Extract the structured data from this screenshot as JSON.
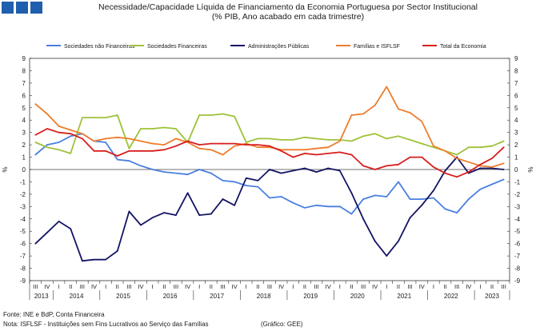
{
  "header": {
    "title": "Necessidade/Capacidade Líquida de Financiamento da Economia Portuguesa por Sector Institucional",
    "subtitle": "(% PIB, Ano acabado em cada trimestre)",
    "logo_color": "#1f5fad"
  },
  "footer": {
    "source": "Fonte: INE e BdP, Conta Financeira",
    "note": "Nota: ISFLSF - Instituições sem Fins Lucrativos ao Serviço das Famílias",
    "credit": "(Gráfico: GEE)"
  },
  "chart_data": {
    "type": "line",
    "ylabel": "%",
    "ylim": [
      -9,
      9
    ],
    "yticks": [
      9,
      8,
      7,
      6,
      5,
      4,
      3,
      2,
      1,
      0,
      -1,
      -2,
      -3,
      -4,
      -5,
      -6,
      -7,
      -8,
      -9
    ],
    "x": [
      "III 2013",
      "IV 2013",
      "I 2014",
      "II 2014",
      "III 2014",
      "IV 2014",
      "I 2015",
      "II 2015",
      "III 2015",
      "IV 2015",
      "I 2016",
      "II 2016",
      "III 2016",
      "IV 2016",
      "I 2017",
      "II 2017",
      "III 2017",
      "IV 2017",
      "I 2018",
      "II 2018",
      "III 2018",
      "IV 2018",
      "I 2019",
      "II 2019",
      "III 2019",
      "IV 2019",
      "I 2020",
      "II 2020",
      "III 2020",
      "IV 2020",
      "I 2021",
      "II 2021",
      "III 2021",
      "IV 2021",
      "I 2022",
      "II 2022",
      "III 2022",
      "IV 2022",
      "I 2023",
      "II 2023",
      "III 2023"
    ],
    "quarter_labels": [
      "III",
      "IV",
      "I",
      "II",
      "III",
      "IV",
      "I",
      "II",
      "III",
      "IV",
      "I",
      "II",
      "III",
      "IV",
      "I",
      "II",
      "III",
      "IV",
      "I",
      "II",
      "III",
      "IV",
      "I",
      "II",
      "III",
      "IV",
      "I",
      "II",
      "III",
      "IV",
      "I",
      "II",
      "III",
      "IV",
      "I",
      "II",
      "III",
      "IV",
      "I",
      "II",
      "III"
    ],
    "years": [
      {
        "label": "2013",
        "from": 0,
        "to": 1
      },
      {
        "label": "2014",
        "from": 2,
        "to": 5
      },
      {
        "label": "2015",
        "from": 6,
        "to": 9
      },
      {
        "label": "2016",
        "from": 10,
        "to": 13
      },
      {
        "label": "2017",
        "from": 14,
        "to": 17
      },
      {
        "label": "2018",
        "from": 18,
        "to": 21
      },
      {
        "label": "2019",
        "from": 22,
        "to": 25
      },
      {
        "label": "2020",
        "from": 26,
        "to": 29
      },
      {
        "label": "2021",
        "from": 30,
        "to": 33
      },
      {
        "label": "2022",
        "from": 34,
        "to": 37
      },
      {
        "label": "2023",
        "from": 38,
        "to": 40
      }
    ],
    "legend_position": "top",
    "series": [
      {
        "name": "Sociedades não Financeiras",
        "color": "#4a7fe0",
        "values": [
          1.2,
          2.0,
          2.2,
          2.7,
          2.9,
          2.3,
          2.2,
          0.8,
          0.7,
          0.3,
          0.0,
          -0.2,
          -0.3,
          -0.4,
          0.0,
          -0.3,
          -0.9,
          -1.0,
          -1.3,
          -1.4,
          -2.3,
          -2.2,
          -2.7,
          -3.1,
          -2.9,
          -3.0,
          -3.0,
          -3.6,
          -2.4,
          -2.1,
          -2.2,
          -1.0,
          -2.4,
          -2.4,
          -2.3,
          -3.2,
          -3.5,
          -2.4,
          -1.6,
          -1.2,
          -0.8
        ]
      },
      {
        "name": "Sociedades Financeiras",
        "color": "#9dc23a",
        "values": [
          2.2,
          1.8,
          1.6,
          1.3,
          4.2,
          4.2,
          4.2,
          4.4,
          1.7,
          3.3,
          3.3,
          3.4,
          3.3,
          2.2,
          4.4,
          4.4,
          4.5,
          4.3,
          2.2,
          2.5,
          2.5,
          2.4,
          2.4,
          2.6,
          2.5,
          2.4,
          2.4,
          2.3,
          2.7,
          2.9,
          2.5,
          2.7,
          2.4,
          2.1,
          1.8,
          1.5,
          1.2,
          1.8,
          1.8,
          1.9,
          2.3
        ]
      },
      {
        "name": "Administrações Públicas",
        "color": "#141464",
        "values": [
          -6.0,
          -5.1,
          -4.2,
          -4.8,
          -7.4,
          -7.3,
          -7.3,
          -6.6,
          -3.4,
          -4.5,
          -3.9,
          -3.5,
          -3.7,
          -1.9,
          -3.7,
          -3.6,
          -2.4,
          -2.9,
          -0.7,
          -0.9,
          0.0,
          -0.3,
          -0.1,
          0.1,
          -0.2,
          0.1,
          -0.1,
          -1.9,
          -4.0,
          -5.8,
          -7.0,
          -5.8,
          -3.9,
          -2.9,
          -1.7,
          -0.1,
          1.0,
          -0.3,
          0.1,
          0.1,
          0.0
        ]
      },
      {
        "name": "Famílias e ISFLSF",
        "color": "#ee7d2b",
        "values": [
          5.3,
          4.5,
          3.5,
          3.2,
          2.9,
          2.3,
          2.5,
          2.6,
          2.5,
          2.3,
          2.1,
          2.0,
          2.5,
          2.2,
          1.7,
          1.6,
          1.2,
          1.9,
          2.1,
          1.8,
          1.8,
          1.6,
          1.6,
          1.6,
          1.7,
          1.8,
          2.3,
          4.4,
          4.5,
          5.2,
          6.7,
          4.9,
          4.6,
          3.9,
          1.9,
          1.5,
          0.9,
          0.6,
          0.3,
          0.2,
          0.5
        ]
      },
      {
        "name": "Total da Economia",
        "color": "#d81e1e",
        "values": [
          2.8,
          3.3,
          3.0,
          2.9,
          2.5,
          1.5,
          1.5,
          1.1,
          1.5,
          1.5,
          1.5,
          1.6,
          1.9,
          2.3,
          2.0,
          2.1,
          2.1,
          2.1,
          2.0,
          2.0,
          1.9,
          1.5,
          1.0,
          1.3,
          1.2,
          1.3,
          1.4,
          1.2,
          0.3,
          0.0,
          0.3,
          0.4,
          1.0,
          1.0,
          0.2,
          -0.3,
          -0.6,
          -0.2,
          0.4,
          0.9,
          1.8
        ]
      }
    ]
  }
}
